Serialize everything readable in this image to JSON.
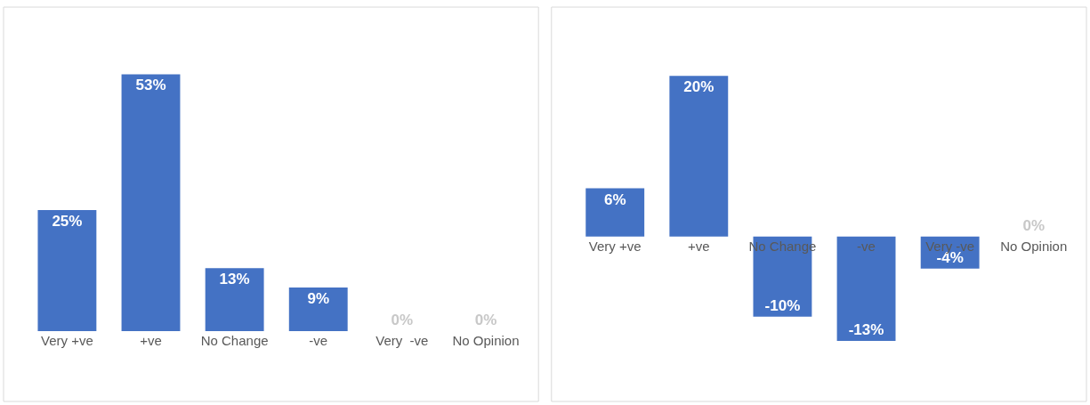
{
  "chart_data": [
    {
      "type": "bar",
      "categories": [
        "Very +ve",
        "+ve",
        "No Change",
        "-ve",
        "Very  -ve",
        "No Opinion"
      ],
      "values": [
        25,
        53,
        13,
        9,
        0,
        0
      ],
      "value_labels": [
        "25%",
        "53%",
        "13%",
        "9%",
        "0%",
        "0%"
      ],
      "color": "#4472c4",
      "legend": false
    },
    {
      "type": "bar",
      "categories": [
        "Very +ve",
        "+ve",
        "No Change",
        "-ve",
        "Very -ve",
        "No Opinion"
      ],
      "values": [
        6,
        20,
        -10,
        -13,
        -4,
        0
      ],
      "value_labels": [
        "6%",
        "20%",
        "-10%",
        "-13%",
        "-4%",
        "0%"
      ],
      "color": "#4472c4",
      "legend": false
    }
  ]
}
